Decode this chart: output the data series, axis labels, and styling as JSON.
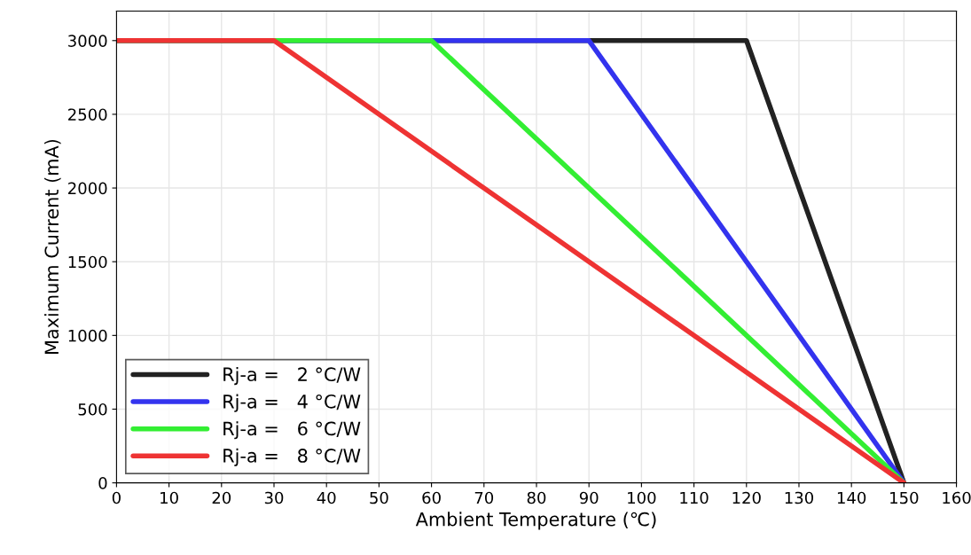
{
  "chart_data": {
    "type": "line",
    "xlabel": "Ambient Temperature (℃)",
    "ylabel": "Maximum Current (mA)",
    "xlim": [
      0,
      160
    ],
    "xticks": [
      0,
      10,
      20,
      30,
      40,
      50,
      60,
      70,
      80,
      90,
      100,
      110,
      120,
      130,
      140,
      150,
      160
    ],
    "ylim": [
      0,
      3200
    ],
    "yticks": [
      0,
      500,
      1000,
      1500,
      2000,
      2500,
      3000
    ],
    "grid": true,
    "legend": "bottom left",
    "line_style": "solid",
    "marker": "none",
    "series": [
      {
        "name": "Rj-a =   2 °C/W",
        "color": "#222222",
        "x": [
          0,
          120,
          150
        ],
        "values": [
          3000,
          3000,
          0
        ]
      },
      {
        "name": "Rj-a =   4 °C/W",
        "color": "#3333ee",
        "x": [
          0,
          90,
          150
        ],
        "values": [
          3000,
          3000,
          0
        ]
      },
      {
        "name": "Rj-a =   6 °C/W",
        "color": "#33ee33",
        "x": [
          0,
          60,
          150
        ],
        "values": [
          3000,
          3000,
          0
        ]
      },
      {
        "name": "Rj-a =   8 °C/W",
        "color": "#ee3333",
        "x": [
          0,
          30,
          150
        ],
        "values": [
          3000,
          3000,
          0
        ]
      }
    ]
  }
}
